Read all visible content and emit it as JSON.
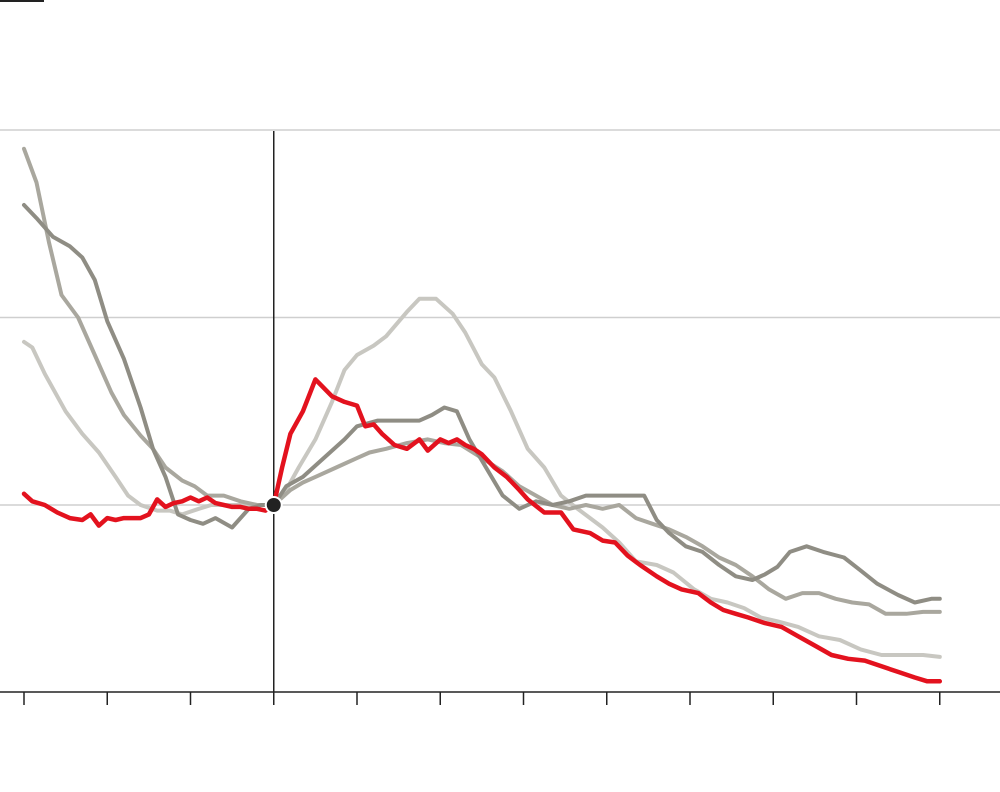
{
  "chart_data": {
    "type": "line",
    "title": "",
    "xlabel": "",
    "ylabel": "",
    "xlim": [
      -3,
      8
    ],
    "ylim": [
      -1,
      2
    ],
    "x_ticks": [
      -3,
      -2,
      -1,
      0,
      1,
      2,
      3,
      4,
      5,
      6,
      7,
      8
    ],
    "y_gridlines": [
      0,
      1,
      2
    ],
    "reference_x": 0,
    "grid": true,
    "colors": {
      "highlight": "#e3121e",
      "gray_dark": "#8f8d84",
      "gray_mid": "#a9a79e",
      "gray_light": "#c8c7c1",
      "axis": "#222222",
      "grid": "#cfcfcf"
    },
    "series": [
      {
        "color_key": "gray_light",
        "x": [
          -3.0,
          -2.9,
          -2.75,
          -2.5,
          -2.3,
          -2.1,
          -1.9,
          -1.75,
          -1.6,
          -1.4,
          -1.25,
          -1.1,
          -0.9,
          -0.75,
          -0.5,
          -0.25,
          0.0,
          0.15,
          0.3,
          0.5,
          0.7,
          0.85,
          1.0,
          1.2,
          1.35,
          1.6,
          1.75,
          1.95,
          2.15,
          2.3,
          2.5,
          2.65,
          2.85,
          3.05,
          3.25,
          3.45,
          3.65,
          3.8,
          3.95,
          4.15,
          4.35,
          4.6,
          4.8,
          5.05,
          5.25,
          5.45,
          5.65,
          5.85,
          6.05,
          6.3,
          6.55,
          6.8,
          7.05,
          7.3,
          7.55,
          7.8,
          8.0
        ],
        "y": [
          0.87,
          0.84,
          0.7,
          0.5,
          0.38,
          0.28,
          0.15,
          0.05,
          0.0,
          -0.03,
          -0.03,
          -0.05,
          -0.02,
          0.0,
          0.0,
          0.0,
          0.0,
          0.08,
          0.2,
          0.35,
          0.55,
          0.72,
          0.8,
          0.85,
          0.9,
          1.03,
          1.1,
          1.1,
          1.02,
          0.92,
          0.75,
          0.68,
          0.5,
          0.3,
          0.2,
          0.05,
          -0.02,
          -0.07,
          -0.12,
          -0.2,
          -0.3,
          -0.32,
          -0.36,
          -0.45,
          -0.5,
          -0.52,
          -0.55,
          -0.6,
          -0.62,
          -0.65,
          -0.7,
          -0.72,
          -0.77,
          -0.8,
          -0.8,
          -0.8,
          -0.81
        ]
      },
      {
        "color_key": "gray_mid",
        "x": [
          -3.0,
          -2.85,
          -2.7,
          -2.55,
          -2.35,
          -2.15,
          -1.95,
          -1.8,
          -1.6,
          -1.45,
          -1.3,
          -1.1,
          -0.95,
          -0.8,
          -0.6,
          -0.4,
          -0.2,
          0.0,
          0.2,
          0.35,
          0.5,
          0.75,
          1.0,
          1.15,
          1.35,
          1.6,
          1.85,
          2.05,
          2.25,
          2.5,
          2.75,
          2.95,
          3.15,
          3.35,
          3.55,
          3.75,
          3.95,
          4.15,
          4.35,
          4.55,
          4.75,
          4.95,
          5.15,
          5.35,
          5.55,
          5.75,
          5.95,
          6.15,
          6.35,
          6.55,
          6.75,
          6.95,
          7.15,
          7.35,
          7.6,
          7.8,
          8.0
        ],
        "y": [
          1.9,
          1.72,
          1.4,
          1.12,
          1.0,
          0.8,
          0.6,
          0.48,
          0.37,
          0.3,
          0.2,
          0.13,
          0.1,
          0.05,
          0.05,
          0.02,
          0.0,
          0.0,
          0.08,
          0.12,
          0.15,
          0.2,
          0.25,
          0.28,
          0.3,
          0.33,
          0.35,
          0.33,
          0.32,
          0.25,
          0.18,
          0.1,
          0.05,
          0.0,
          -0.02,
          0.0,
          -0.02,
          0.0,
          -0.07,
          -0.1,
          -0.13,
          -0.17,
          -0.22,
          -0.28,
          -0.32,
          -0.38,
          -0.45,
          -0.5,
          -0.47,
          -0.47,
          -0.5,
          -0.52,
          -0.53,
          -0.58,
          -0.58,
          -0.57,
          -0.57
        ]
      },
      {
        "color_key": "gray_dark",
        "x": [
          -3.0,
          -2.85,
          -2.65,
          -2.45,
          -2.3,
          -2.15,
          -2.0,
          -1.8,
          -1.6,
          -1.45,
          -1.3,
          -1.15,
          -1.0,
          -0.85,
          -0.7,
          -0.5,
          -0.3,
          -0.15,
          0.0,
          0.15,
          0.35,
          0.6,
          0.85,
          1.0,
          1.25,
          1.55,
          1.75,
          1.9,
          2.05,
          2.2,
          2.35,
          2.55,
          2.75,
          2.95,
          3.15,
          3.35,
          3.55,
          3.75,
          3.95,
          4.2,
          4.45,
          4.6,
          4.75,
          4.95,
          5.15,
          5.35,
          5.55,
          5.75,
          5.9,
          6.05,
          6.2,
          6.4,
          6.6,
          6.85,
          7.05,
          7.25,
          7.5,
          7.7,
          7.9,
          8.0
        ],
        "y": [
          1.6,
          1.53,
          1.43,
          1.38,
          1.32,
          1.2,
          0.98,
          0.78,
          0.52,
          0.3,
          0.15,
          -0.05,
          -0.08,
          -0.1,
          -0.07,
          -0.12,
          -0.02,
          0.0,
          0.0,
          0.1,
          0.15,
          0.25,
          0.35,
          0.42,
          0.45,
          0.45,
          0.45,
          0.48,
          0.52,
          0.5,
          0.35,
          0.2,
          0.05,
          -0.02,
          0.02,
          0.0,
          0.02,
          0.05,
          0.05,
          0.05,
          0.05,
          -0.08,
          -0.15,
          -0.22,
          -0.25,
          -0.32,
          -0.38,
          -0.4,
          -0.37,
          -0.33,
          -0.25,
          -0.22,
          -0.25,
          -0.28,
          -0.35,
          -0.42,
          -0.48,
          -0.52,
          -0.5,
          -0.5
        ]
      },
      {
        "color_key": "highlight",
        "x": [
          -3.0,
          -2.9,
          -2.75,
          -2.6,
          -2.45,
          -2.3,
          -2.2,
          -2.1,
          -2.0,
          -1.9,
          -1.8,
          -1.7,
          -1.6,
          -1.5,
          -1.4,
          -1.3,
          -1.2,
          -1.1,
          -1.0,
          -0.9,
          -0.8,
          -0.7,
          -0.6,
          -0.5,
          -0.4,
          -0.3,
          -0.2,
          -0.1,
          0.0,
          0.1,
          0.2,
          0.35,
          0.5,
          0.7,
          0.85,
          1.0,
          1.1,
          1.2,
          1.3,
          1.45,
          1.6,
          1.75,
          1.85,
          2.0,
          2.1,
          2.2,
          2.3,
          2.4,
          2.5,
          2.65,
          2.8,
          2.95,
          3.05,
          3.25,
          3.45,
          3.6,
          3.8,
          3.95,
          4.1,
          4.25,
          4.4,
          4.6,
          4.75,
          4.9,
          5.1,
          5.25,
          5.4,
          5.55,
          5.7,
          5.9,
          6.1,
          6.3,
          6.5,
          6.7,
          6.9,
          7.1,
          7.3,
          7.5,
          7.7,
          7.85,
          8.0
        ],
        "y": [
          0.06,
          0.02,
          0.0,
          -0.04,
          -0.07,
          -0.08,
          -0.05,
          -0.11,
          -0.07,
          -0.08,
          -0.07,
          -0.07,
          -0.07,
          -0.05,
          0.03,
          -0.01,
          0.01,
          0.02,
          0.04,
          0.02,
          0.04,
          0.01,
          0.0,
          -0.01,
          -0.01,
          -0.02,
          -0.02,
          -0.03,
          0.0,
          0.2,
          0.38,
          0.5,
          0.67,
          0.58,
          0.55,
          0.53,
          0.42,
          0.43,
          0.38,
          0.32,
          0.3,
          0.35,
          0.29,
          0.35,
          0.33,
          0.35,
          0.32,
          0.3,
          0.27,
          0.2,
          0.15,
          0.08,
          0.03,
          -0.04,
          -0.04,
          -0.13,
          -0.15,
          -0.19,
          -0.2,
          -0.27,
          -0.32,
          -0.38,
          -0.42,
          -0.45,
          -0.47,
          -0.52,
          -0.56,
          -0.58,
          -0.6,
          -0.63,
          -0.65,
          -0.7,
          -0.75,
          -0.8,
          -0.82,
          -0.83,
          -0.86,
          -0.89,
          -0.92,
          -0.94,
          -0.94
        ]
      }
    ],
    "marker": {
      "x": 0,
      "y": 0
    }
  }
}
